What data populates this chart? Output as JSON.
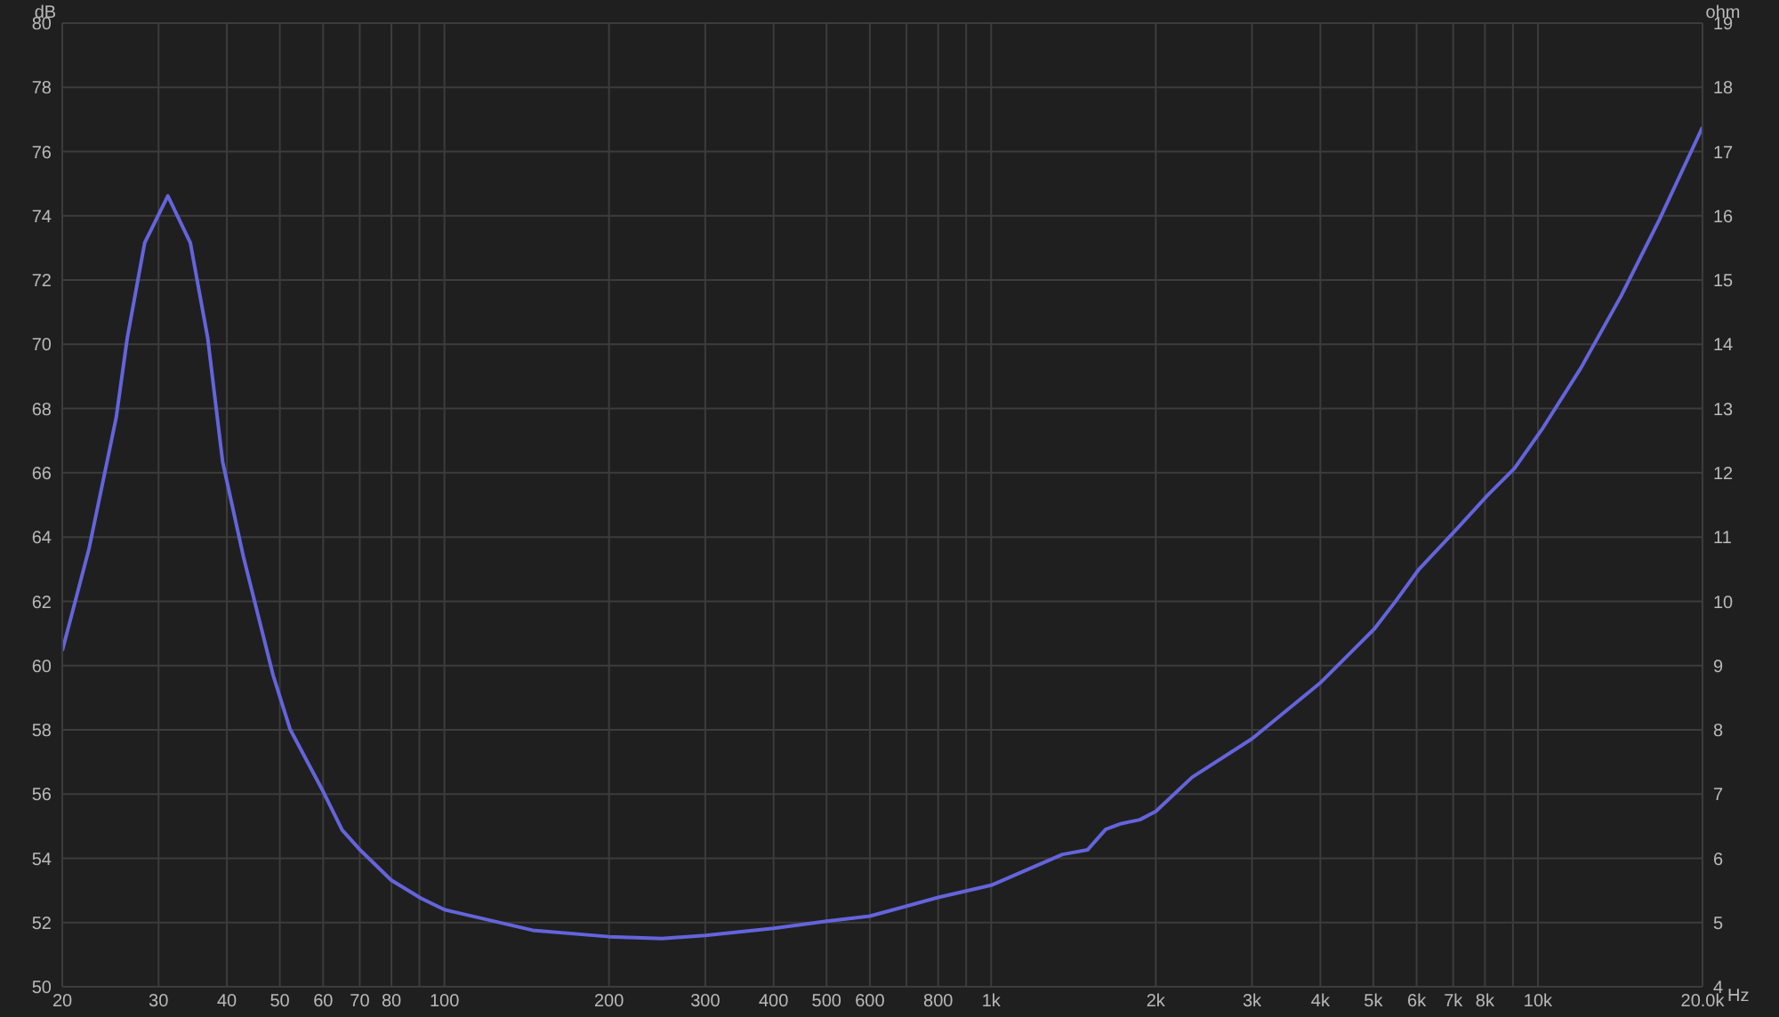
{
  "chart_data": {
    "type": "line",
    "xlabel": "Hz",
    "ylabel": "dB",
    "y2label": "ohm",
    "log": "x",
    "grid": true,
    "marker": "none",
    "line_style": "solid",
    "xlim": [
      20,
      20000
    ],
    "xticks": [
      20,
      30,
      40,
      50,
      60,
      70,
      80,
      {
        "value": 90,
        "label": null
      },
      100,
      200,
      300,
      400,
      500,
      600,
      {
        "value": 700,
        "label": null
      },
      800,
      {
        "value": 900,
        "label": null
      },
      {
        "value": 1000,
        "label": "1k"
      },
      {
        "value": 2000,
        "label": "2k"
      },
      {
        "value": 3000,
        "label": "3k"
      },
      {
        "value": 4000,
        "label": "4k"
      },
      {
        "value": 5000,
        "label": "5k"
      },
      {
        "value": 6000,
        "label": "6k"
      },
      {
        "value": 7000,
        "label": "7k"
      },
      {
        "value": 8000,
        "label": "8k"
      },
      {
        "value": 9000,
        "label": null
      },
      {
        "value": 10000,
        "label": "10k"
      },
      {
        "value": 20000,
        "label": "20.0k"
      }
    ],
    "ylim": [
      50,
      80
    ],
    "yticks": [
      50,
      52,
      54,
      56,
      58,
      60,
      62,
      64,
      66,
      68,
      70,
      72,
      74,
      76,
      78,
      80
    ],
    "y2lim": [
      4,
      19
    ],
    "y2ticks": [
      4,
      5,
      6,
      7,
      8,
      9,
      10,
      11,
      12,
      13,
      14,
      15,
      16,
      17,
      18,
      19
    ],
    "series": [
      {
        "color": "#6464dc",
        "axis": "y2",
        "x": [
          20,
          22.4,
          25.1,
          26.3,
          28.3,
          31.2,
          34.3,
          36.9,
          39.3,
          42.9,
          48.6,
          52.2,
          60,
          65,
          70.3,
          79.9,
          90.5,
          100,
          145,
          200,
          250,
          300,
          400,
          500,
          600,
          800,
          1000,
          1350,
          1500,
          1620,
          1730,
          1870,
          2000,
          2330,
          3000,
          4010,
          5020,
          5480,
          6060,
          7060,
          8090,
          9060,
          10160,
          12000,
          14190,
          16700,
          20000
        ],
        "values": [
          9.23,
          10.83,
          12.86,
          14.1,
          15.58,
          16.31,
          15.58,
          14.1,
          12.17,
          10.69,
          8.85,
          8.01,
          7.04,
          6.44,
          6.12,
          5.66,
          5.38,
          5.2,
          4.88,
          4.78,
          4.75,
          4.8,
          4.91,
          5.02,
          5.1,
          5.39,
          5.58,
          6.06,
          6.13,
          6.45,
          6.54,
          6.6,
          6.73,
          7.26,
          7.86,
          8.74,
          9.57,
          9.99,
          10.5,
          11.1,
          11.65,
          12.07,
          12.67,
          13.64,
          14.75,
          15.95,
          17.38
        ]
      }
    ]
  }
}
